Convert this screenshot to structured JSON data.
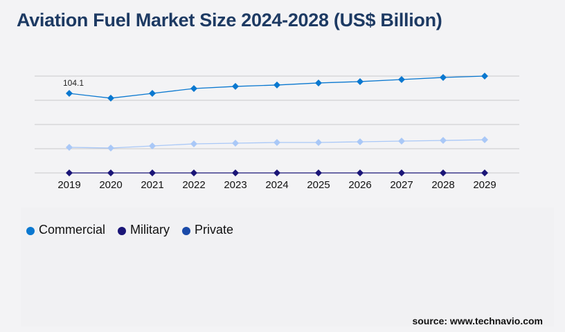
{
  "title": "Aviation Fuel Market Size 2024-2028 (US$ Billion)",
  "source": "source: www.technavio.com",
  "chart_data": {
    "type": "line",
    "title": "Aviation Fuel Market Size 2024-2028 (US$ Billion)",
    "categories": [
      "2019",
      "2020",
      "2021",
      "2022",
      "2023",
      "2024",
      "2025",
      "2026",
      "2027",
      "2028",
      "2029"
    ],
    "ylim": [
      0,
      126.7
    ],
    "grid": true,
    "legend_placement": "bottom-left",
    "annotations": [
      {
        "x": "2019",
        "label": "104.1"
      }
    ],
    "series": [
      {
        "name": "Commercial",
        "color": "#0a78d0",
        "values": [
          104.1,
          97.8,
          104.1,
          110.4,
          113.2,
          115.0,
          117.7,
          119.5,
          122.2,
          124.9,
          126.7
        ]
      },
      {
        "name": "Military",
        "color": "#1a1577",
        "values": [
          0,
          0,
          0,
          0,
          0,
          0,
          0,
          0,
          0,
          0,
          0
        ]
      },
      {
        "name": "Private",
        "color": "#a9c8f7",
        "legend_color": "#1a4aa8",
        "values": [
          33.5,
          32.6,
          35.3,
          38.0,
          38.9,
          39.8,
          39.8,
          40.7,
          41.6,
          42.5,
          43.4
        ]
      }
    ]
  }
}
